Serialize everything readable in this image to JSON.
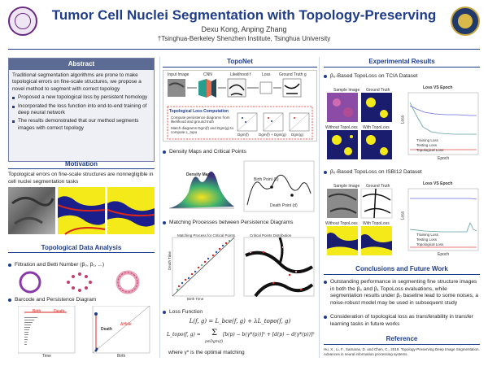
{
  "header": {
    "title": "Tumor Cell Nuclei Segmentation with Topology-Preserving",
    "authors": "Dexu Kong, Anping Zhang",
    "affiliation": "†Tsinghua-Berkeley Shenzhen Institute, Tsinghua University"
  },
  "abstract": {
    "heading": "Abstract",
    "paragraph": "Traditional segmentation algorithms are prone to make topological errors on fine-scale structures, we propose a novel method to segment with correct topology",
    "bullets": [
      "Proposed a new topological loss by persistent homology",
      "Incorporated the loss function into end-to-end training of deep neural network",
      "The results demonstrated that our method segments images with correct topology"
    ]
  },
  "motivation": {
    "heading": "Motivation",
    "text": "Topological errors on fine-scale structures are nonnegligible in cell nuclei segmentation tasks"
  },
  "tda": {
    "heading": "Topological Data Analysis",
    "bullet_filtration": "Filtration and Betti Number (β₀, β₁, ...)",
    "bullet_barcode": "Barcode and Persistence Diagram",
    "barcode_birth": "Birth",
    "barcode_death": "Death",
    "barcode_xlabel": "Time",
    "pd_ylabel": "Death",
    "pd_xlabel": "Birth",
    "pd_annot": "ΔHole"
  },
  "toponet": {
    "heading": "TopoNet",
    "labels": [
      "Input Image",
      "CNN",
      "Likelihood f",
      "Loss",
      "Ground Truth g"
    ],
    "box_title": "Topological Loss Computation",
    "box_lines": [
      "Compute persistence diagrams from likelihood and ground truth",
      "Match diagrams Dgm(f) and Dgm(g) to compute L_topo"
    ],
    "dgm_labels": [
      "Dgm(f)",
      "Dgm(f) + Dgm(g)",
      "Dgm(g)"
    ],
    "bullet_density": "Density Maps and Critical Points",
    "density_map_label": "Density Map",
    "birth_label": "Birth Point (b)",
    "death_label": "Death Point (d)",
    "bullet_matching": "Matching Processes between Persistence Diagrams",
    "match_title1": "Matching Process for Critical Points",
    "match_title2": "Critical Points Distribution",
    "match_xlabel": "Birth Time",
    "match_ylabel": "Death Time",
    "bullet_loss": "Loss Function",
    "eq1": "L(f, g) = L_bce(f, g) + λL_topo(f, g)",
    "eq2_lhs": "L_topo(f, g) = ",
    "eq2_rhs": "[b(p) − b(γ*(p))]² + [d(p) − d(γ*(p))]²",
    "eq2_sum": "Σ",
    "eq2_sub": "p∈Dgm(f)",
    "where": "where γ* is the optimal matching"
  },
  "results": {
    "heading": "Experimental Results",
    "bullet_tcia": "β₀-Based TopoLoss on TCIA Dataset",
    "bullet_isbi": "β₀-Based TopoLoss on ISBI12 Dataset",
    "img_labels": [
      "Sample Image",
      "Ground Truth",
      "Without TopoLoss",
      "With TopoLoss"
    ],
    "plot_title": "Loss VS Epoch",
    "plot_xlabel": "Epoch",
    "plot_ylabel": "Loss",
    "legend": [
      "Training Loss",
      "Testing Loss",
      "Topological Loss"
    ]
  },
  "conclusion": {
    "heading": "Conclusions and Future Work",
    "bullets": [
      "Outstanding performance in segmenting fine structure images in both the β₀ and β₁ TopoLoss evaluations, while segmentation results under β₀ baseline lead to some noises, a noise-robust model may be used in subsequent study",
      "Consideration of topological loss as transferability in transfer learning tasks in future works"
    ]
  },
  "reference": {
    "heading": "Reference",
    "text": "Hu, X., Li, F., Samaras, D. and Chen, C., 2019. Topology-Preserving Deep Image Segmentation. Advances in neural information processing systems."
  },
  "colors": {
    "accent": "#1f3d8a",
    "abstract_header": "#5b6b94"
  }
}
